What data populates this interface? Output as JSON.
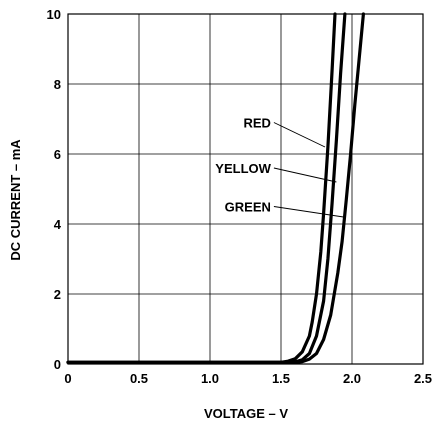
{
  "chart_data": {
    "type": "line",
    "title": "",
    "xlabel": "VOLTAGE – V",
    "ylabel": "DC CURRENT – mA",
    "xlim": [
      0,
      2.5
    ],
    "ylim": [
      0,
      10
    ],
    "x_ticks": [
      "0",
      "0.5",
      "1.0",
      "1.5",
      "2.0",
      "2.5"
    ],
    "y_ticks": [
      "0",
      "2",
      "4",
      "6",
      "8",
      "10"
    ],
    "grid": true,
    "legend": "inline labels with leader lines",
    "line_color": "#000000",
    "series": [
      {
        "name": "RED",
        "x": [
          0,
          1.5,
          1.55,
          1.6,
          1.65,
          1.7,
          1.72,
          1.75,
          1.78,
          1.8,
          1.83,
          1.86,
          1.88
        ],
        "y": [
          0.05,
          0.05,
          0.08,
          0.15,
          0.35,
          0.8,
          1.2,
          2.0,
          3.2,
          4.3,
          6.2,
          8.4,
          10
        ]
      },
      {
        "name": "YELLOW",
        "x": [
          0,
          1.55,
          1.6,
          1.65,
          1.7,
          1.75,
          1.8,
          1.83,
          1.86,
          1.89,
          1.92,
          1.95
        ],
        "y": [
          0.05,
          0.05,
          0.06,
          0.12,
          0.3,
          0.8,
          1.8,
          3.0,
          4.6,
          6.4,
          8.3,
          10
        ]
      },
      {
        "name": "GREEN",
        "x": [
          0,
          1.6,
          1.65,
          1.7,
          1.75,
          1.8,
          1.85,
          1.9,
          1.93,
          1.96,
          1.99,
          2.02,
          2.05,
          2.08
        ],
        "y": [
          0.05,
          0.05,
          0.07,
          0.14,
          0.3,
          0.7,
          1.4,
          2.6,
          3.5,
          4.7,
          6.0,
          7.4,
          8.7,
          10
        ]
      }
    ],
    "annotations": [
      {
        "text": "RED",
        "series": "RED",
        "at_x": 1.81,
        "at_y": 6.2,
        "label_y": 6.9
      },
      {
        "text": "YELLOW",
        "series": "YELLOW",
        "at_x": 1.89,
        "at_y": 5.2,
        "label_y": 5.6
      },
      {
        "text": "GREEN",
        "series": "GREEN",
        "at_x": 1.94,
        "at_y": 4.2,
        "label_y": 4.5
      }
    ]
  }
}
